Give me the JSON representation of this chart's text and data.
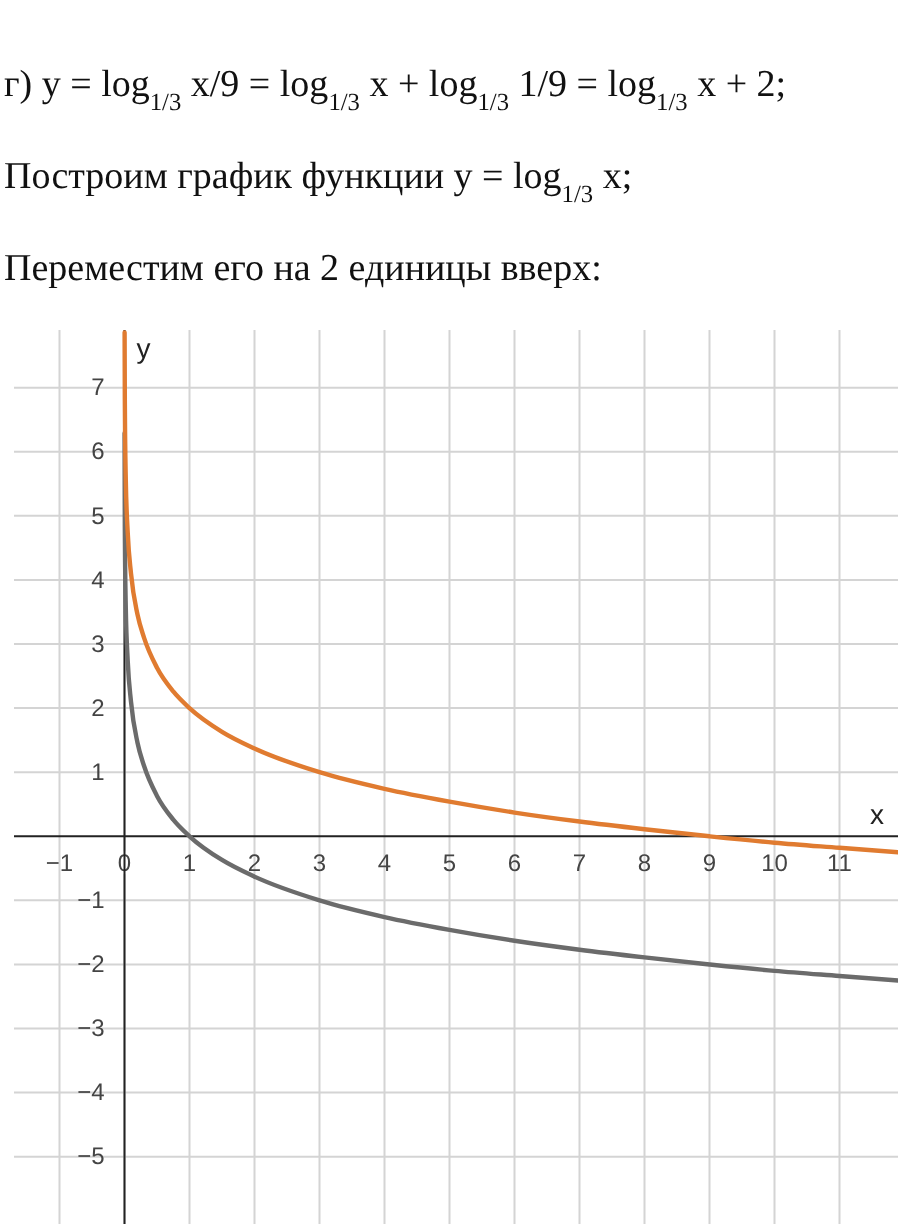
{
  "chart_data": {
    "type": "line",
    "title": "г) y = log$_{1/3}$ x/9 = log$_{1/3}$ x + log$_{1/3}$ 1/9 = log$_{1/3}$ x + 2;",
    "subtitle": "Построим график функции y = log$_{1/3}$ x;",
    "annotations": [
      "Переместим его на 2 единицы вверх:"
    ],
    "xlabel": "x",
    "ylabel": "y",
    "xlim": [
      -1.7,
      11.9
    ],
    "ylim": [
      -6.05,
      7.9
    ],
    "xticks": [
      -1,
      0,
      1,
      2,
      3,
      4,
      5,
      6,
      7,
      8,
      9,
      10,
      11
    ],
    "yticks": [
      -5,
      -4,
      -3,
      -2,
      -1,
      1,
      2,
      3,
      4,
      5,
      6,
      7
    ],
    "grid": true,
    "series": [
      {
        "color": "#6b6b6b",
        "x": [
          0.001,
          0.005,
          0.01,
          0.02,
          0.05,
          0.1,
          0.2,
          0.3,
          0.5,
          0.75,
          1,
          1.5,
          2,
          3,
          4,
          5,
          6,
          7,
          8,
          9,
          10,
          11,
          11.9
        ],
        "values": [
          6.29,
          4.82,
          4.19,
          3.56,
          2.73,
          2.1,
          1.46,
          1.1,
          0.63,
          0.26,
          0,
          -0.37,
          -0.63,
          -1,
          -1.26,
          -1.46,
          -1.63,
          -1.77,
          -1.89,
          -2,
          -2.1,
          -2.18,
          -2.25
        ]
      },
      {
        "color": "#e07b30",
        "x": [
          0.0016,
          0.005,
          0.01,
          0.02,
          0.05,
          0.1,
          0.2,
          0.3,
          0.5,
          0.75,
          1,
          1.5,
          2,
          3,
          4,
          5,
          6,
          7,
          8,
          9,
          10,
          11,
          11.9
        ],
        "values": [
          7.86,
          6.82,
          6.19,
          5.56,
          4.73,
          4.1,
          3.46,
          3.1,
          2.63,
          2.26,
          2,
          1.63,
          1.37,
          1,
          0.74,
          0.54,
          0.37,
          0.23,
          0.11,
          0,
          -0.1,
          -0.18,
          -0.25
        ]
      }
    ]
  }
}
